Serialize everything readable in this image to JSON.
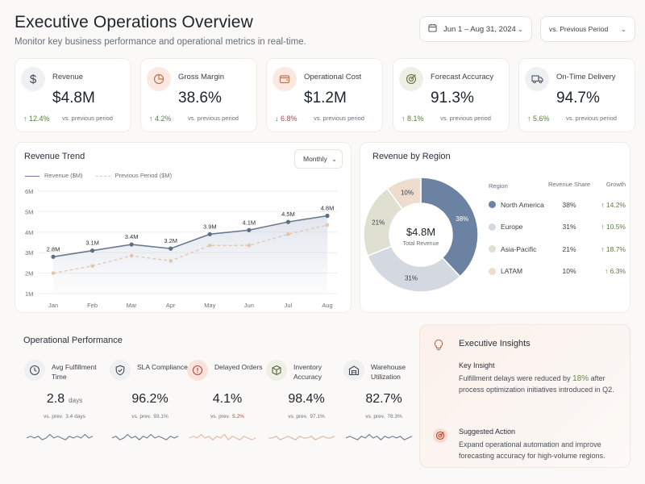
{
  "header": {
    "title": "Executive Operations Overview",
    "subtitle": "Monitor key business performance and operational metrics in real-time.",
    "date_range": "Jun 1 – Aug 31, 2024",
    "comparison": "vs. Previous Period"
  },
  "colors": {
    "accent": "#6a80a0",
    "positive": "#5d7b3e",
    "negative": "#b5483f",
    "icon_bg_peach": "#fbe9e1",
    "icon_bg_grey": "#eef0f2"
  },
  "kpis": [
    {
      "icon": "dollar-icon",
      "label": "Revenue",
      "value": "$4.8M",
      "delta": "↑ 12.4%",
      "direction": "up",
      "note": "vs. previous period"
    },
    {
      "icon": "pie-chart-icon",
      "label": "Gross Margin",
      "value": "38.6%",
      "delta": "↑ 4.2%",
      "direction": "up",
      "note": "vs. previous period"
    },
    {
      "icon": "wallet-icon",
      "label": "Operational Cost",
      "value": "$1.2M",
      "delta": "↓ 6.8%",
      "direction": "down",
      "note": "vs. previous period"
    },
    {
      "icon": "target-icon",
      "label": "Forecast Accuracy",
      "value": "91.3%",
      "delta": "↑ 8.1%",
      "direction": "up",
      "note": "vs. previous period"
    },
    {
      "icon": "truck-icon",
      "label": "On-Time Delivery",
      "value": "94.7%",
      "delta": "↑ 5.6%",
      "direction": "up",
      "note": "vs. previous period"
    }
  ],
  "revenue_trend": {
    "title": "Revenue Trend",
    "interval": "Monthly",
    "legend_current": "Revenue ($M)",
    "legend_previous": "Previous Period ($M)"
  },
  "chart_data": [
    {
      "type": "line",
      "title": "Revenue Trend",
      "categories": [
        "Jan",
        "Feb",
        "Mar",
        "Apr",
        "May",
        "Jun",
        "Jul",
        "Aug"
      ],
      "yticks": [
        "6M",
        "5M",
        "4M",
        "3M",
        "2M",
        "1M"
      ],
      "ylim": [
        1,
        6
      ],
      "series": [
        {
          "name": "Revenue ($M)",
          "values": [
            2.8,
            3.1,
            3.4,
            3.2,
            3.9,
            4.1,
            4.5,
            4.8
          ],
          "labels": [
            "2.8M",
            "3.1M",
            "3.4M",
            "3.2M",
            "3.9M",
            "4.1M",
            "4.5M",
            "4.8M"
          ],
          "color": "#6a7890"
        },
        {
          "name": "Previous Period ($M)",
          "values": [
            2.0,
            2.35,
            2.85,
            2.6,
            3.35,
            3.35,
            3.9,
            4.35
          ],
          "color": "#e2c7ae"
        }
      ],
      "grid": true,
      "legend": "top-left"
    },
    {
      "type": "pie",
      "title": "Revenue by Region",
      "center_value": "$4.8M",
      "center_label": "Total Revenue",
      "slices": [
        {
          "name": "North America",
          "value": 38,
          "label": "38%",
          "color": "#6b82a3"
        },
        {
          "name": "Europe",
          "value": 31,
          "label": "31%",
          "color": "#d4d8e0"
        },
        {
          "name": "Asia-Pacific",
          "value": 21,
          "label": "21%",
          "color": "#dfe0d1"
        },
        {
          "name": "LATAM",
          "value": 10,
          "label": "10%",
          "color": "#eeddcd"
        }
      ]
    }
  ],
  "region": {
    "title": "Revenue by Region",
    "col_region": "Region",
    "col_share": "Revenue Share",
    "col_growth": "Growth",
    "rows": [
      {
        "name": "North America",
        "share": "38%",
        "growth": "↑ 14.2%",
        "color": "#6b82a3"
      },
      {
        "name": "Europe",
        "share": "31%",
        "growth": "↑ 10.5%",
        "color": "#d4d8e0"
      },
      {
        "name": "Asia-Pacific",
        "share": "21%",
        "growth": "↑ 18.7%",
        "color": "#dfe0d1"
      },
      {
        "name": "LATAM",
        "share": "10%",
        "growth": "↑ 6.3%",
        "color": "#eeddcd"
      }
    ]
  },
  "ops": {
    "title": "Operational Performance",
    "items": [
      {
        "icon": "clock-icon",
        "label": "Avg Fulfillment Time",
        "value": "2.8",
        "unit": "days",
        "note_prefix": "vs. prev.",
        "note_value": "3.4 days",
        "note_color": "#6a6f78",
        "spark_color": "#6a7890",
        "spark": [
          5,
          6,
          5,
          6,
          4,
          5,
          7,
          5,
          6,
          5,
          4,
          6,
          5,
          6,
          5,
          7,
          5,
          6
        ]
      },
      {
        "icon": "shield-icon",
        "label": "SLA Compliance",
        "value": "96.2%",
        "unit": "",
        "note_prefix": "vs. prev.",
        "note_value": "93.1%",
        "note_color": "#6a6f78",
        "spark_color": "#6a7890",
        "spark": [
          5,
          6,
          4,
          5,
          7,
          5,
          6,
          4,
          6,
          5,
          7,
          5,
          6,
          5,
          4,
          6,
          5,
          6
        ]
      },
      {
        "icon": "alert-icon",
        "label": "Delayed Orders",
        "value": "4.1%",
        "unit": "",
        "note_prefix": "vs. prev.",
        "note_value": "5.2%",
        "note_color": "#b5483f",
        "spark_color": "#e2b79f",
        "spark": [
          5,
          6,
          5,
          7,
          5,
          6,
          4,
          6,
          5,
          7,
          4,
          6,
          5,
          4,
          6,
          5,
          4,
          5
        ]
      },
      {
        "icon": "box-icon",
        "label": "Inventory Accuracy",
        "value": "98.4%",
        "unit": "",
        "note_prefix": "vs. prev.",
        "note_value": "97.1%",
        "note_color": "#6a6f78",
        "spark_color": "#d7b49a",
        "spark": [
          5,
          5,
          6,
          4,
          5,
          6,
          5,
          4,
          6,
          5,
          5,
          6,
          4,
          5,
          6,
          5,
          5,
          6
        ]
      },
      {
        "icon": "warehouse-icon",
        "label": "Warehouse Utilization",
        "value": "82.7%",
        "unit": "",
        "note_prefix": "vs. prev.",
        "note_value": "78.3%",
        "note_color": "#6a6f78",
        "spark_color": "#6a7890",
        "spark": [
          5,
          6,
          5,
          4,
          6,
          5,
          7,
          5,
          6,
          4,
          6,
          5,
          6,
          5,
          6,
          4,
          5,
          6
        ]
      }
    ]
  },
  "insights": {
    "title": "Executive Insights",
    "key_title": "Key Insight",
    "key_text_before": "Fulfillment delays were reduced by ",
    "key_highlight": "18%",
    "key_text_after": "after process optimization initiatives introduced in Q2.",
    "action_title": "Suggested Action",
    "action_text": "Expand operational automation and improve forecasting accuracy for high-volume regions."
  }
}
